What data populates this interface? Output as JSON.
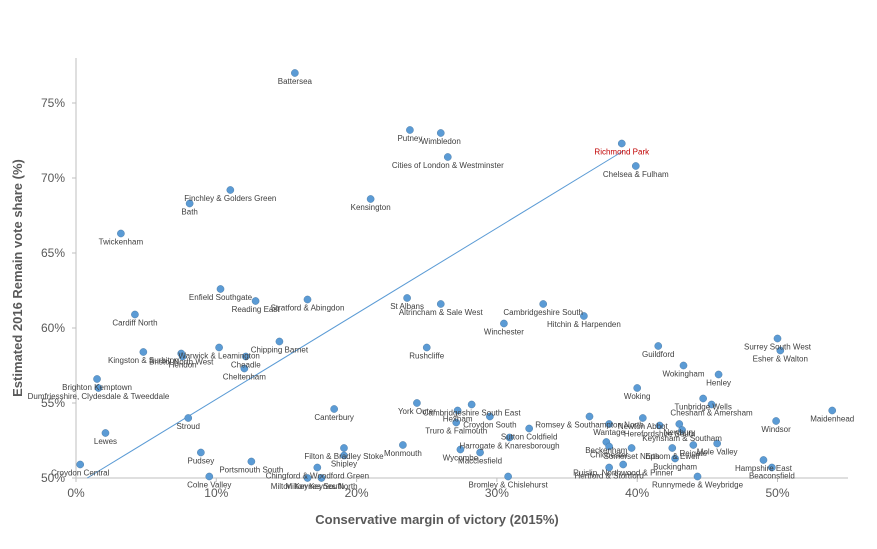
{
  "chart_data": {
    "type": "scatter",
    "xlabel": "Conservative margin of victory (2015%)",
    "ylabel": "Estimated 2016 Remain vote share (%)",
    "xlim": [
      0,
      55
    ],
    "ylim": [
      50,
      78
    ],
    "x_ticks": [
      "0%",
      "10%",
      "20%",
      "30%",
      "40%",
      "50%"
    ],
    "y_ticks": [
      "50%",
      "55%",
      "60%",
      "65%",
      "70%",
      "75%"
    ],
    "highlight_color": "#c00000",
    "point_color": "#5b9bd5",
    "trendline": {
      "x": [
        0.8,
        39.0
      ],
      "y": [
        50.0,
        71.8
      ]
    },
    "points": [
      {
        "name": "Battersea",
        "x": 15.6,
        "y": 77.0
      },
      {
        "name": "Putney",
        "x": 23.8,
        "y": 73.2
      },
      {
        "name": "Wimbledon",
        "x": 26.0,
        "y": 73.0
      },
      {
        "name": "Richmond Park",
        "x": 38.9,
        "y": 72.3,
        "highlight": true
      },
      {
        "name": "Cities of London & Westminster",
        "x": 26.5,
        "y": 71.4
      },
      {
        "name": "Chelsea & Fulham",
        "x": 39.9,
        "y": 70.8
      },
      {
        "name": "Finchley & Golders Green",
        "x": 11.0,
        "y": 69.2
      },
      {
        "name": "Bath",
        "x": 8.1,
        "y": 68.3
      },
      {
        "name": "Kensington",
        "x": 21.0,
        "y": 68.6
      },
      {
        "name": "Twickenham",
        "x": 3.2,
        "y": 66.3
      },
      {
        "name": "Enfield Southgate",
        "x": 10.3,
        "y": 62.6
      },
      {
        "name": "Reading East",
        "x": 12.8,
        "y": 61.8
      },
      {
        "name": "Stratford & Abingdon",
        "x": 16.5,
        "y": 61.9
      },
      {
        "name": "St Albans",
        "x": 23.6,
        "y": 62.0
      },
      {
        "name": "Altrincham & Sale West",
        "x": 26.0,
        "y": 61.6
      },
      {
        "name": "Cambridgeshire South",
        "x": 33.3,
        "y": 61.6
      },
      {
        "name": "Cardiff North",
        "x": 4.2,
        "y": 60.9
      },
      {
        "name": "Hitchin & Harpenden",
        "x": 36.2,
        "y": 60.8
      },
      {
        "name": "Winchester",
        "x": 30.5,
        "y": 60.3
      },
      {
        "name": "Chipping Barnet",
        "x": 14.5,
        "y": 59.1
      },
      {
        "name": "Warwick & Leamington",
        "x": 10.2,
        "y": 58.7
      },
      {
        "name": "Kingston & Surbiton",
        "x": 4.8,
        "y": 58.4
      },
      {
        "name": "Bristol North West",
        "x": 7.5,
        "y": 58.3
      },
      {
        "name": "Hendon",
        "x": 7.6,
        "y": 58.1
      },
      {
        "name": "Cheadle",
        "x": 12.1,
        "y": 58.1
      },
      {
        "name": "Rushcliffe",
        "x": 25.0,
        "y": 58.7
      },
      {
        "name": "Guildford",
        "x": 41.5,
        "y": 58.8
      },
      {
        "name": "Surrey South West",
        "x": 50.0,
        "y": 59.3
      },
      {
        "name": "Esher & Walton",
        "x": 50.2,
        "y": 58.5
      },
      {
        "name": "Wokingham",
        "x": 43.3,
        "y": 57.5
      },
      {
        "name": "Cheltenham",
        "x": 12.0,
        "y": 57.3
      },
      {
        "name": "Henley",
        "x": 45.8,
        "y": 56.9
      },
      {
        "name": "Brighton Kemptown",
        "x": 1.5,
        "y": 56.6
      },
      {
        "name": "Dumfriesshire, Clydesdale & Tweeddale",
        "x": 1.6,
        "y": 56.0
      },
      {
        "name": "Woking",
        "x": 40.0,
        "y": 56.0
      },
      {
        "name": "Tunbridge Wells",
        "x": 44.7,
        "y": 55.3
      },
      {
        "name": "Chesham & Amersham",
        "x": 45.3,
        "y": 54.9
      },
      {
        "name": "York Outer",
        "x": 24.3,
        "y": 55.0
      },
      {
        "name": "Cambridgeshire South East",
        "x": 28.2,
        "y": 54.9
      },
      {
        "name": "Hexham",
        "x": 27.2,
        "y": 54.5
      },
      {
        "name": "Canterbury",
        "x": 18.4,
        "y": 54.6
      },
      {
        "name": "Maidenhead",
        "x": 53.9,
        "y": 54.5
      },
      {
        "name": "Stroud",
        "x": 8.0,
        "y": 54.0
      },
      {
        "name": "Croydon South",
        "x": 29.5,
        "y": 54.1
      },
      {
        "name": "Romsey & Southampton North",
        "x": 36.6,
        "y": 54.1
      },
      {
        "name": "Newton Abbot",
        "x": 40.4,
        "y": 54.0
      },
      {
        "name": "Windsor",
        "x": 49.9,
        "y": 53.8
      },
      {
        "name": "Truro & Falmouth",
        "x": 27.1,
        "y": 53.7
      },
      {
        "name": "Wantage",
        "x": 38.0,
        "y": 53.6
      },
      {
        "name": "Herefordshire South",
        "x": 41.6,
        "y": 53.5
      },
      {
        "name": "Newbury",
        "x": 43.0,
        "y": 53.6
      },
      {
        "name": "Sutton Coldfield",
        "x": 32.3,
        "y": 53.3
      },
      {
        "name": "Keynsham & Southam",
        "x": 43.2,
        "y": 53.2
      },
      {
        "name": "Lewes",
        "x": 2.1,
        "y": 53.0
      },
      {
        "name": "Harrogate & Knaresborough",
        "x": 30.9,
        "y": 52.7
      },
      {
        "name": "Beckenham",
        "x": 37.8,
        "y": 52.4
      },
      {
        "name": "Reigate",
        "x": 44.0,
        "y": 52.2
      },
      {
        "name": "Mole Valley",
        "x": 45.7,
        "y": 52.3
      },
      {
        "name": "Chichester",
        "x": 38.0,
        "y": 52.1
      },
      {
        "name": "Somerset North",
        "x": 39.6,
        "y": 52.0
      },
      {
        "name": "Epsom & Ewell",
        "x": 42.5,
        "y": 52.0
      },
      {
        "name": "Filton & Bradley Stoke",
        "x": 19.1,
        "y": 52.0
      },
      {
        "name": "Monmouth",
        "x": 23.3,
        "y": 52.2
      },
      {
        "name": "Wycombe",
        "x": 27.4,
        "y": 51.9
      },
      {
        "name": "Macclesfield",
        "x": 28.8,
        "y": 51.7
      },
      {
        "name": "Pudsey",
        "x": 8.9,
        "y": 51.7
      },
      {
        "name": "Shipley",
        "x": 19.1,
        "y": 51.5
      },
      {
        "name": "Buckingham",
        "x": 42.7,
        "y": 51.3
      },
      {
        "name": "Hampshire East",
        "x": 49.0,
        "y": 51.2
      },
      {
        "name": "Portsmouth South",
        "x": 12.5,
        "y": 51.1
      },
      {
        "name": "Ruislip, Northwood & Pinner",
        "x": 39.0,
        "y": 50.9
      },
      {
        "name": "Hertford & Stortford",
        "x": 38.0,
        "y": 50.7
      },
      {
        "name": "Beaconsfield",
        "x": 49.6,
        "y": 50.7
      },
      {
        "name": "Croydon Central",
        "x": 0.3,
        "y": 50.9
      },
      {
        "name": "Chingford & Woodford Green",
        "x": 17.2,
        "y": 50.7
      },
      {
        "name": "Colne Valley",
        "x": 9.5,
        "y": 50.1
      },
      {
        "name": "Milton Keynes South",
        "x": 16.5,
        "y": 50.0
      },
      {
        "name": "Milton Keynes North",
        "x": 17.5,
        "y": 50.0
      },
      {
        "name": "Bromley & Chislehurst",
        "x": 30.8,
        "y": 50.1
      },
      {
        "name": "Runnymede & Weybridge",
        "x": 44.3,
        "y": 50.1
      }
    ]
  }
}
